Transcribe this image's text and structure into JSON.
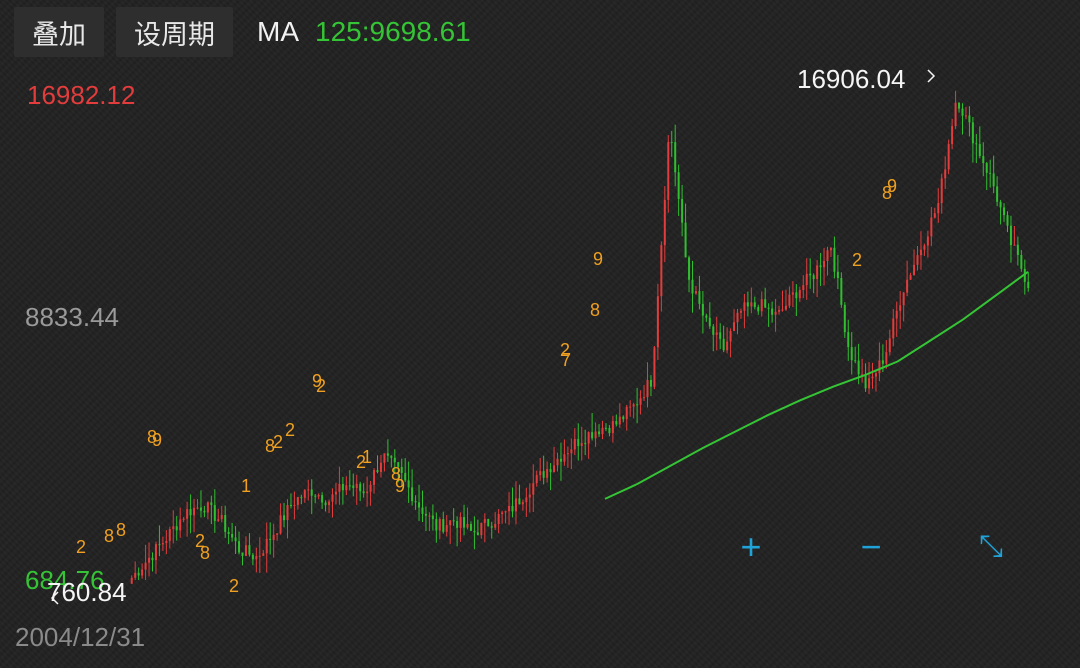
{
  "toolbar": {
    "overlay_label": "叠加",
    "period_label": "设周期",
    "ma_label": "MA",
    "ma_value": "125:9698.61"
  },
  "axis": {
    "top_value": "16982.12",
    "mid_value": "8833.44",
    "bottom_value": "684.76",
    "start_date": "2004/12/31"
  },
  "annotations": {
    "high": "16906.04",
    "low": "760.84"
  },
  "controls": {
    "zoom_in": "+",
    "zoom_out": "−",
    "fullscreen": "⤡"
  },
  "colors": {
    "up": "#e23c3c",
    "down": "#2fbf2f",
    "ma_line": "#35c435",
    "marker": "#f0a020",
    "accent": "#1fa3d8"
  },
  "chart_data": {
    "type": "candlestick",
    "ylim": [
      684.76,
      16982.12
    ],
    "series": [
      {
        "values": [
          760.84,
          1450,
          2150,
          2950,
          3200,
          2650,
          1700,
          1450,
          2350,
          3300,
          3700,
          3350,
          3900,
          3600,
          4850,
          4200,
          3200,
          2450,
          2700,
          2250,
          2650,
          2950,
          3650,
          4300,
          4900,
          5400,
          5750,
          5900,
          6500,
          7400,
          15950,
          10900,
          9300,
          8400,
          9700,
          9900,
          9500,
          10300,
          10900,
          11900,
          8400,
          7100,
          8200,
          10400,
          11800,
          13300,
          16906.04,
          15400,
          14000,
          12000,
          10600
        ]
      },
      {
        "values": [
          3400,
          3900,
          4500,
          5100,
          5650,
          6200,
          6700,
          7150,
          7550,
          8000,
          8700,
          9400,
          10200,
          11000
        ]
      }
    ],
    "markers": [
      "8",
      "9",
      "8",
      "2",
      "2",
      "1",
      "2",
      "8",
      "2",
      "2",
      "8",
      "8",
      "9",
      "2",
      "1",
      "2",
      "8",
      "9",
      "2",
      "7",
      "8",
      "9",
      "2",
      "8",
      "9"
    ]
  }
}
